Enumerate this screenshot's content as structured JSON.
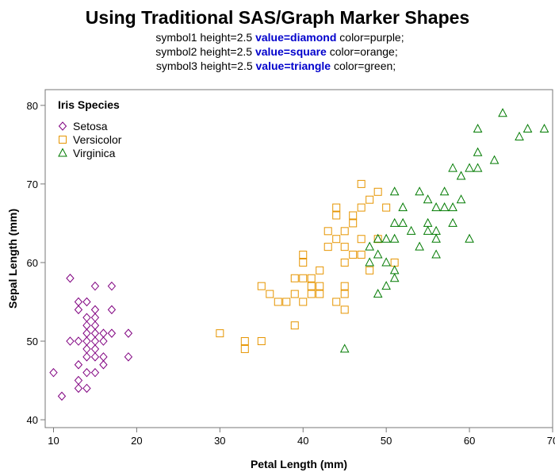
{
  "header": {
    "title": "Using Traditional SAS/Graph Marker Shapes",
    "symbol_lines": [
      {
        "pre": "symbol1 height=2.5 ",
        "kw": "value=diamond",
        "post": " color=purple;"
      },
      {
        "pre": "symbol2 height=2.5 ",
        "kw": "value=square",
        "post": " color=orange;"
      },
      {
        "pre": "symbol3 height=2.5 ",
        "kw": "value=triangle",
        "post": " color=green;"
      }
    ]
  },
  "chart_data": {
    "type": "scatter",
    "xlabel": "Petal Length (mm)",
    "ylabel": "Sepal Length (mm)",
    "xlim": [
      9,
      70
    ],
    "ylim": [
      39,
      82
    ],
    "xticks": [
      10,
      20,
      30,
      40,
      50,
      60,
      70
    ],
    "yticks": [
      40,
      50,
      60,
      70,
      80
    ],
    "grid": false,
    "legend": {
      "title": "Iris Species",
      "placement": "top-left"
    },
    "series": [
      {
        "name": "Setosa",
        "marker": "diamond",
        "color": "#800080",
        "points": [
          [
            10,
            46
          ],
          [
            11,
            43
          ],
          [
            12,
            58
          ],
          [
            12,
            50
          ],
          [
            13,
            55
          ],
          [
            13,
            54
          ],
          [
            13,
            50
          ],
          [
            13,
            47
          ],
          [
            13,
            45
          ],
          [
            13,
            44
          ],
          [
            14,
            55
          ],
          [
            14,
            53
          ],
          [
            14,
            52
          ],
          [
            14,
            51
          ],
          [
            14,
            50
          ],
          [
            14,
            49
          ],
          [
            14,
            48
          ],
          [
            14,
            46
          ],
          [
            14,
            44
          ],
          [
            15,
            57
          ],
          [
            15,
            54
          ],
          [
            15,
            53
          ],
          [
            15,
            52
          ],
          [
            15,
            51
          ],
          [
            15,
            50
          ],
          [
            15,
            49
          ],
          [
            15,
            48
          ],
          [
            15,
            46
          ],
          [
            16,
            51
          ],
          [
            16,
            50
          ],
          [
            16,
            48
          ],
          [
            16,
            47
          ],
          [
            17,
            57
          ],
          [
            17,
            54
          ],
          [
            17,
            51
          ],
          [
            19,
            51
          ],
          [
            19,
            48
          ]
        ]
      },
      {
        "name": "Versicolor",
        "marker": "square",
        "color": "#e69500",
        "points": [
          [
            30,
            51
          ],
          [
            33,
            50
          ],
          [
            33,
            49
          ],
          [
            35,
            57
          ],
          [
            35,
            50
          ],
          [
            36,
            56
          ],
          [
            37,
            55
          ],
          [
            38,
            55
          ],
          [
            39,
            56
          ],
          [
            39,
            52
          ],
          [
            39,
            58
          ],
          [
            40,
            61
          ],
          [
            40,
            60
          ],
          [
            40,
            58
          ],
          [
            40,
            55
          ],
          [
            41,
            58
          ],
          [
            41,
            57
          ],
          [
            41,
            56
          ],
          [
            42,
            59
          ],
          [
            42,
            57
          ],
          [
            42,
            56
          ],
          [
            43,
            64
          ],
          [
            43,
            62
          ],
          [
            44,
            67
          ],
          [
            44,
            66
          ],
          [
            44,
            63
          ],
          [
            44,
            55
          ],
          [
            45,
            64
          ],
          [
            45,
            62
          ],
          [
            45,
            60
          ],
          [
            45,
            57
          ],
          [
            45,
            56
          ],
          [
            45,
            54
          ],
          [
            46,
            66
          ],
          [
            46,
            65
          ],
          [
            46,
            61
          ],
          [
            47,
            70
          ],
          [
            47,
            67
          ],
          [
            47,
            63
          ],
          [
            47,
            61
          ],
          [
            48,
            68
          ],
          [
            48,
            59
          ],
          [
            49,
            69
          ],
          [
            49,
            63
          ],
          [
            50,
            67
          ],
          [
            51,
            60
          ]
        ]
      },
      {
        "name": "Virginica",
        "marker": "triangle",
        "color": "#007a00",
        "points": [
          [
            45,
            49
          ],
          [
            48,
            62
          ],
          [
            48,
            60
          ],
          [
            49,
            63
          ],
          [
            49,
            61
          ],
          [
            49,
            56
          ],
          [
            50,
            63
          ],
          [
            50,
            60
          ],
          [
            50,
            57
          ],
          [
            51,
            69
          ],
          [
            51,
            65
          ],
          [
            51,
            63
          ],
          [
            51,
            59
          ],
          [
            51,
            58
          ],
          [
            52,
            67
          ],
          [
            52,
            65
          ],
          [
            53,
            64
          ],
          [
            54,
            69
          ],
          [
            54,
            62
          ],
          [
            55,
            68
          ],
          [
            55,
            65
          ],
          [
            55,
            64
          ],
          [
            56,
            67
          ],
          [
            56,
            64
          ],
          [
            56,
            63
          ],
          [
            56,
            61
          ],
          [
            57,
            69
          ],
          [
            57,
            67
          ],
          [
            58,
            72
          ],
          [
            58,
            67
          ],
          [
            58,
            65
          ],
          [
            59,
            71
          ],
          [
            59,
            68
          ],
          [
            60,
            72
          ],
          [
            60,
            63
          ],
          [
            61,
            77
          ],
          [
            61,
            74
          ],
          [
            61,
            72
          ],
          [
            63,
            73
          ],
          [
            64,
            79
          ],
          [
            66,
            76
          ],
          [
            67,
            77
          ],
          [
            69,
            77
          ]
        ]
      }
    ]
  }
}
